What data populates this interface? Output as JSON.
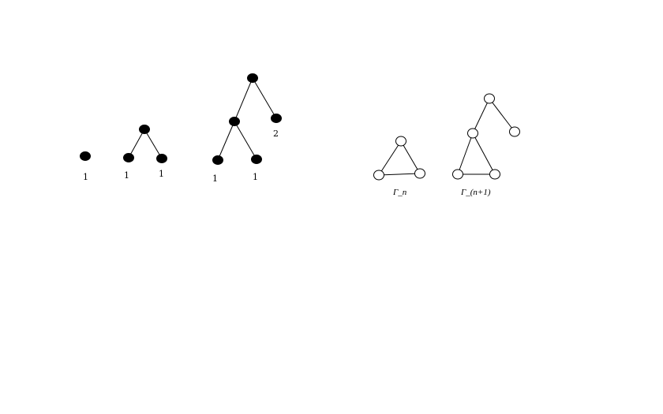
{
  "figure": {
    "trees": [
      {
        "id": "tree-1",
        "leaf_labels": [
          "1"
        ]
      },
      {
        "id": "tree-2",
        "leaf_labels": [
          "1",
          "1"
        ]
      },
      {
        "id": "tree-3",
        "leaf_labels": [
          "1",
          "1",
          "2"
        ]
      }
    ],
    "graphs": [
      {
        "id": "gamma-n",
        "caption": "Γ_n"
      },
      {
        "id": "gamma-n-plus-1",
        "caption": "Γ_(n+1)"
      }
    ]
  }
}
